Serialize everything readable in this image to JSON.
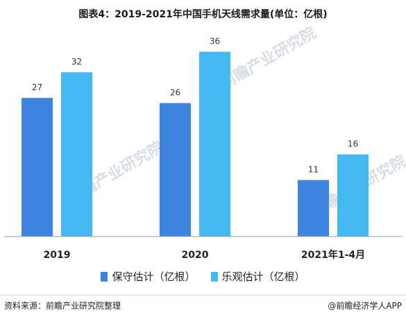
{
  "colors": {
    "conservative": "#3f84df",
    "optimistic": "#45b8f1",
    "axis": "#9a9a9a",
    "label": "#333333",
    "watermark": "#d8dde3"
  },
  "watermark_text": "前瞻产业研究院",
  "chart_data": {
    "type": "bar",
    "title": "图表4：2019-2021年中国手机天线需求量(单位：亿根)",
    "categories": [
      "2019",
      "2020",
      "2021年1-4月"
    ],
    "series": [
      {
        "name": "保守估计（亿根）",
        "values": [
          27,
          26,
          11
        ]
      },
      {
        "name": "乐观估计（亿根）",
        "values": [
          32,
          36,
          16
        ]
      }
    ],
    "ylim": [
      0,
      40
    ],
    "grid": false,
    "legend": "bottom",
    "xlabel": "",
    "ylabel": ""
  },
  "footer": {
    "source": "资料来源：前瞻产业研究院整理",
    "credit": "@前瞻经济学人APP"
  }
}
